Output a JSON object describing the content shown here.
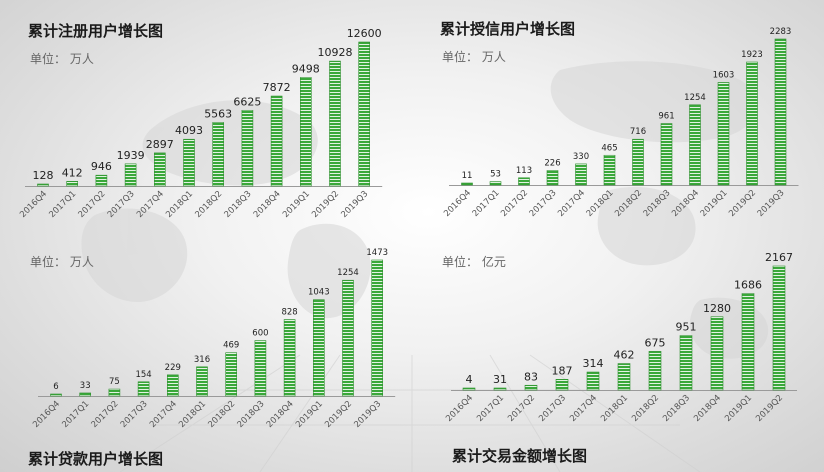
{
  "slide": {
    "bar_color": "#3aa83a",
    "bar_stripe": "#ffffff"
  },
  "chart_data": [
    {
      "type": "bar",
      "title": "累计注册用户增长图",
      "unit": "单位：  万人",
      "categories": [
        "2016Q4",
        "2017Q1",
        "2017Q2",
        "2017Q3",
        "2017Q4",
        "2018Q1",
        "2018Q2",
        "2018Q3",
        "2018Q4",
        "2019Q1",
        "2019Q2",
        "2019Q3"
      ],
      "values": [
        128,
        412,
        946,
        1939,
        2897,
        4093,
        5563,
        6625,
        7872,
        9498,
        10928,
        12600
      ],
      "value_labels": [
        "128",
        "412",
        "946",
        "1939",
        "2897",
        "4093",
        "5563",
        "6625",
        "7872",
        "9498",
        "10928",
        "12600"
      ],
      "ylim": [
        0,
        12600
      ],
      "grid": false,
      "legend": "none"
    },
    {
      "type": "bar",
      "title": "累计授信用户增长图",
      "unit": "单位：  万人",
      "categories": [
        "2016Q4",
        "2017Q1",
        "2017Q2",
        "2017Q3",
        "2017Q4",
        "2018Q1",
        "2018Q2",
        "2018Q3",
        "2018Q4",
        "2019Q1",
        "2019Q2",
        "2019Q3"
      ],
      "values": [
        11,
        53,
        113,
        226,
        330,
        465,
        716,
        961,
        1254,
        1603,
        1923,
        2283
      ],
      "value_labels": [
        "11",
        "53",
        "113",
        "226",
        "330",
        "465",
        "716",
        "961",
        "1254",
        "1603",
        "1923",
        "2283"
      ],
      "ylim": [
        0,
        2283
      ],
      "grid": false,
      "legend": "none"
    },
    {
      "type": "bar",
      "title": "累计贷款用户增长图",
      "unit": "单位：  万人",
      "categories": [
        "2016Q4",
        "2017Q1",
        "2017Q2",
        "2017Q3",
        "2017Q4",
        "2018Q1",
        "2018Q2",
        "2018Q3",
        "2018Q4",
        "2019Q1",
        "2019Q2",
        "2019Q3"
      ],
      "values": [
        6,
        33,
        75,
        154,
        229,
        316,
        469,
        600,
        828,
        1043,
        1254,
        1473
      ],
      "value_labels": [
        "6",
        "33",
        "75",
        "154",
        "229",
        "316",
        "469",
        "600",
        "828",
        "1043",
        "1254",
        "1473"
      ],
      "ylim": [
        0,
        1473
      ],
      "grid": false,
      "legend": "none"
    },
    {
      "type": "bar",
      "title": "累计交易金额增长图",
      "unit": "单位：  亿元",
      "categories": [
        "2016Q4",
        "2017Q1",
        "2017Q2",
        "2017Q3",
        "2017Q4",
        "2018Q1",
        "2018Q2",
        "2018Q3",
        "2018Q4",
        "2019Q1",
        "2019Q2"
      ],
      "values": [
        4,
        31,
        83,
        187,
        314,
        462,
        675,
        951,
        1280,
        1686,
        2167
      ],
      "value_labels": [
        "4",
        "31",
        "83",
        "187",
        "314",
        "462",
        "675",
        "951",
        "1280",
        "1686",
        "2167"
      ],
      "ylim": [
        0,
        2167
      ],
      "grid": false,
      "legend": "none"
    }
  ]
}
